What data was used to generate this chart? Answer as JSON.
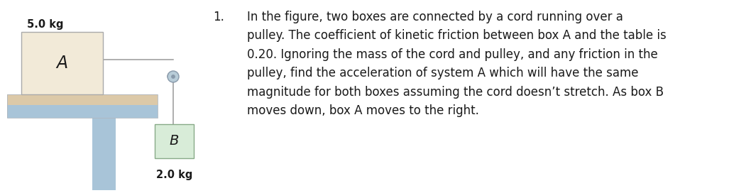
{
  "bg_color": "#ffffff",
  "table_top_color": "#dcc9a8",
  "table_body_color": "#a8c4d8",
  "box_a_fill": "#f2ead8",
  "box_a_edge": "#aaaaaa",
  "box_b_fill": "#d8ecd8",
  "box_b_edge": "#88aa88",
  "pulley_fill": "#b8ccd8",
  "pulley_edge": "#8899aa",
  "cord_color": "#999999",
  "text_color": "#1a1a1a",
  "label_5kg": "5.0 kg",
  "label_2kg": "2.0 kg",
  "label_a": "A",
  "label_b": "B",
  "question_number": "1.",
  "question_text": "In the figure, two boxes are connected by a cord running over a\npulley. The coefficient of kinetic friction between box A and the table is\n0.20. Ignoring the mass of the cord and pulley, and any friction in the\npulley, find the acceleration of system A which will have the same\nmagnitude for both boxes assuming the cord doesn’t stretch. As box B\nmoves down, box A moves to the right.",
  "fig_width": 10.58,
  "fig_height": 2.72,
  "dpi": 100
}
